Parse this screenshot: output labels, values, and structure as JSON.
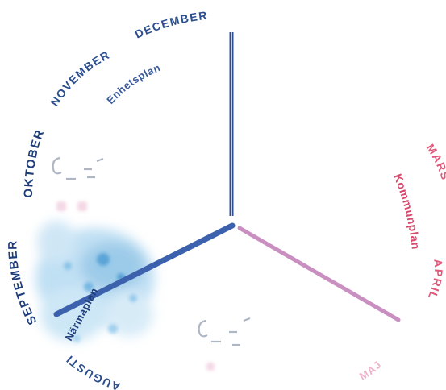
{
  "months": {
    "december": "DECEMBER",
    "november": "NOVEMBER",
    "oktober": "OKTOBER",
    "september": "SEPTEMBER",
    "augusti": "AUGUSTI",
    "mars": "MARS",
    "april": "APRIL",
    "maj": "MAJ"
  },
  "plans": {
    "enhetsplan": "Enhetsplan",
    "kommunplan": "Kommunplan",
    "narmaplan": "Närmaplan"
  },
  "colors": {
    "navy": "#2b4e8e",
    "blue_axis": "#3d62ad",
    "pink": "#e0597a",
    "pink_axis": "#c98fc0",
    "cloud": "#6fb7e0"
  }
}
